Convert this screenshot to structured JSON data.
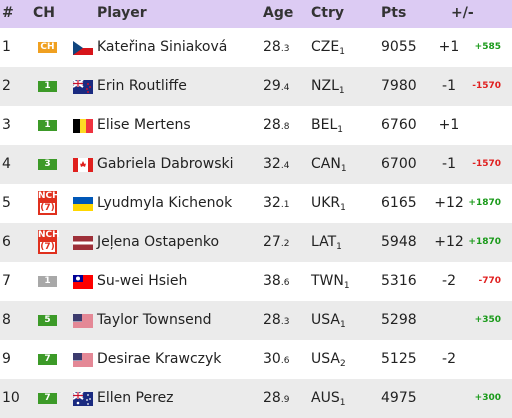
{
  "header": {
    "rank": "#",
    "ch": "CH",
    "player": "Player",
    "age": "Age",
    "country": "Ctry",
    "points": "Pts",
    "change": "+/-"
  },
  "rows": [
    {
      "rank": 1,
      "badge": {
        "label": "CH",
        "color": "#f0a020"
      },
      "player": "Kateřina Siniaková",
      "age": "28",
      "age_frac": ".3",
      "country": "CZE",
      "country_sub": "1",
      "points": 9055,
      "change": "+1",
      "points_change": "+585"
    },
    {
      "rank": 2,
      "badge": {
        "label": "1",
        "color": "#3c9a28"
      },
      "player": "Erin Routliffe",
      "age": "29",
      "age_frac": ".4",
      "country": "NZL",
      "country_sub": "1",
      "points": 7980,
      "change": "-1",
      "points_change": "-1570"
    },
    {
      "rank": 3,
      "badge": {
        "label": "1",
        "color": "#3c9a28"
      },
      "player": "Elise Mertens",
      "age": "28",
      "age_frac": ".8",
      "country": "BEL",
      "country_sub": "1",
      "points": 6760,
      "change": "+1"
    },
    {
      "rank": 4,
      "badge": {
        "label": "3",
        "color": "#3c9a28"
      },
      "player": "Gabriela Dabrowski",
      "age": "32",
      "age_frac": ".4",
      "country": "CAN",
      "country_sub": "1",
      "points": 6700,
      "change": "-1",
      "points_change": "-1570"
    },
    {
      "rank": 5,
      "badge": {
        "label": "NCH",
        "sub": "(7)",
        "color": "#e0301e"
      },
      "player": "Lyudmyla Kichenok",
      "age": "32",
      "age_frac": ".1",
      "country": "UKR",
      "country_sub": "1",
      "points": 6165,
      "change": "+12",
      "points_change": "+1870"
    },
    {
      "rank": 6,
      "badge": {
        "label": "NCH",
        "sub": "(7)",
        "color": "#e0301e"
      },
      "player": "Jeļena Ostapenko",
      "age": "27",
      "age_frac": ".2",
      "country": "LAT",
      "country_sub": "1",
      "points": 5948,
      "change": "+12",
      "points_change": "+1870"
    },
    {
      "rank": 7,
      "badge": {
        "label": "1",
        "color": "#a8a8a8"
      },
      "player": "Su-wei Hsieh",
      "age": "38",
      "age_frac": ".6",
      "country": "TWN",
      "country_sub": "1",
      "points": 5316,
      "change": "-2",
      "points_change": "-770"
    },
    {
      "rank": 8,
      "badge": {
        "label": "5",
        "color": "#3c9a28"
      },
      "player": "Taylor Townsend",
      "age": "28",
      "age_frac": ".3",
      "country": "USA",
      "country_sub": "1",
      "points": 5298,
      "points_change": "+350"
    },
    {
      "rank": 9,
      "badge": {
        "label": "7",
        "color": "#3c9a28"
      },
      "player": "Desirae Krawczyk",
      "age": "30",
      "age_frac": ".6",
      "country": "USA",
      "country_sub": "2",
      "points": 5125,
      "change": "-2"
    },
    {
      "rank": 10,
      "badge": {
        "label": "7",
        "color": "#3c9a28"
      },
      "player": "Ellen Perez",
      "age": "28",
      "age_frac": ".9",
      "country": "AUS",
      "country_sub": "1",
      "points": 4975,
      "points_change": "+300"
    }
  ]
}
